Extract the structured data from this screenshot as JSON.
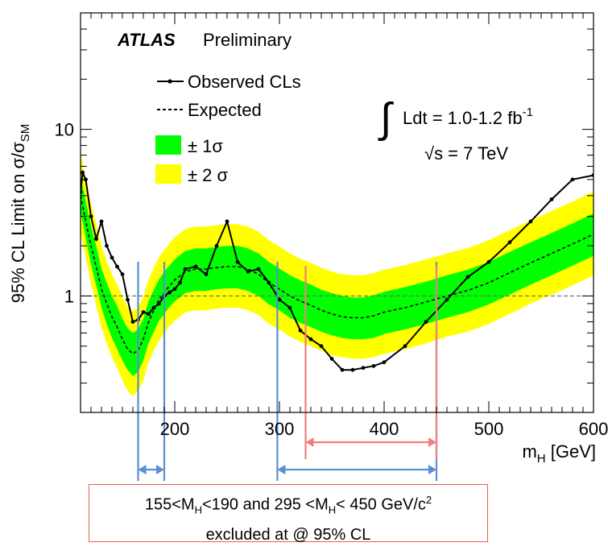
{
  "chart_data": {
    "type": "line",
    "yscale": "log",
    "xlim": [
      110,
      600
    ],
    "ylim": [
      0.2,
      50
    ],
    "grid": false,
    "legend_placement": "top-left",
    "ylabel_parts": {
      "main": "95% CL Limit on  σ/σ",
      "sub": "SM"
    },
    "xlabel_parts": {
      "main": "m",
      "sub": "H",
      "rest": " [GeV]"
    },
    "x_ticks": [
      200,
      300,
      400,
      500,
      600
    ],
    "y_tick_labels": [
      {
        "value": 1,
        "label": "1"
      },
      {
        "value": 10,
        "label": "10"
      }
    ],
    "reference_line": {
      "y": 1,
      "style": "dashed",
      "color": "#666666"
    },
    "annotations": {
      "atlas": "ATLAS",
      "preliminary": "Preliminary",
      "lumi": {
        "integral": "∫",
        "text": "Ldt = 1.0-1.2 fb",
        "sup": "-1"
      },
      "energy": "√s = 7 TeV"
    },
    "legend": [
      {
        "key": "observed",
        "label": "Observed CLs"
      },
      {
        "key": "expected",
        "label": "Expected"
      },
      {
        "key": "one_sigma",
        "label": "± 1σ",
        "color": "#00ff00"
      },
      {
        "key": "two_sigma",
        "label": "± 2 σ",
        "color": "#ffff00"
      }
    ],
    "colors": {
      "one_sigma": "#00ff00",
      "two_sigma": "#ffff00",
      "observed": "#000000",
      "excluded_blue": "#5b8fd0",
      "excluded_red": "#f08080"
    },
    "x": [
      110,
      112,
      115,
      120,
      125,
      130,
      135,
      140,
      145,
      150,
      155,
      160,
      165,
      170,
      175,
      180,
      185,
      190,
      195,
      200,
      205,
      210,
      220,
      230,
      240,
      250,
      260,
      270,
      280,
      290,
      300,
      310,
      320,
      330,
      340,
      350,
      360,
      370,
      380,
      390,
      400,
      420,
      440,
      460,
      480,
      500,
      520,
      540,
      560,
      580,
      600
    ],
    "observed": [
      4.2,
      5.5,
      5.0,
      3.0,
      2.2,
      2.8,
      2.0,
      1.7,
      1.5,
      1.35,
      0.95,
      0.7,
      0.72,
      0.8,
      0.78,
      0.85,
      0.9,
      1.0,
      1.05,
      1.1,
      1.2,
      1.45,
      1.5,
      1.35,
      2.0,
      2.8,
      1.6,
      1.4,
      1.45,
      1.2,
      0.95,
      0.85,
      0.62,
      0.55,
      0.5,
      0.42,
      0.36,
      0.36,
      0.37,
      0.38,
      0.4,
      0.5,
      0.7,
      0.95,
      1.3,
      1.6,
      2.1,
      2.8,
      3.8,
      5.0,
      5.3
    ],
    "expected": [
      4.0,
      3.5,
      2.8,
      2.0,
      1.5,
      1.1,
      0.9,
      0.75,
      0.65,
      0.55,
      0.48,
      0.45,
      0.47,
      0.55,
      0.7,
      0.82,
      0.95,
      1.05,
      1.15,
      1.25,
      1.32,
      1.4,
      1.45,
      1.45,
      1.48,
      1.5,
      1.5,
      1.45,
      1.35,
      1.2,
      1.1,
      1.0,
      0.93,
      0.88,
      0.82,
      0.78,
      0.75,
      0.74,
      0.74,
      0.76,
      0.8,
      0.85,
      0.92,
      1.0,
      1.08,
      1.2,
      1.38,
      1.58,
      1.8,
      2.05,
      2.35
    ],
    "one_sigma_lo": [
      3.2,
      2.8,
      2.2,
      1.55,
      1.15,
      0.85,
      0.68,
      0.56,
      0.48,
      0.41,
      0.36,
      0.33,
      0.35,
      0.41,
      0.52,
      0.61,
      0.71,
      0.78,
      0.86,
      0.93,
      0.98,
      1.04,
      1.07,
      1.07,
      1.1,
      1.11,
      1.11,
      1.07,
      1.0,
      0.89,
      0.82,
      0.74,
      0.69,
      0.65,
      0.61,
      0.58,
      0.56,
      0.55,
      0.55,
      0.56,
      0.59,
      0.63,
      0.68,
      0.74,
      0.8,
      0.89,
      1.02,
      1.17,
      1.33,
      1.52,
      1.74
    ],
    "one_sigma_hi": [
      5.3,
      4.6,
      3.7,
      2.65,
      2.0,
      1.46,
      1.2,
      1.0,
      0.87,
      0.73,
      0.64,
      0.6,
      0.63,
      0.73,
      0.93,
      1.09,
      1.26,
      1.4,
      1.53,
      1.66,
      1.76,
      1.86,
      1.93,
      1.93,
      1.97,
      2.0,
      2.0,
      1.93,
      1.8,
      1.6,
      1.46,
      1.33,
      1.24,
      1.17,
      1.09,
      1.04,
      1.0,
      0.98,
      0.98,
      1.01,
      1.06,
      1.13,
      1.22,
      1.33,
      1.44,
      1.6,
      1.84,
      2.1,
      2.39,
      2.73,
      3.13
    ],
    "two_sigma_lo": [
      2.4,
      2.1,
      1.7,
      1.2,
      0.88,
      0.65,
      0.52,
      0.43,
      0.37,
      0.31,
      0.27,
      0.25,
      0.27,
      0.31,
      0.4,
      0.47,
      0.54,
      0.6,
      0.66,
      0.71,
      0.75,
      0.8,
      0.82,
      0.82,
      0.84,
      0.85,
      0.85,
      0.82,
      0.77,
      0.68,
      0.63,
      0.57,
      0.53,
      0.5,
      0.47,
      0.44,
      0.43,
      0.42,
      0.42,
      0.43,
      0.45,
      0.48,
      0.52,
      0.57,
      0.61,
      0.68,
      0.78,
      0.9,
      1.02,
      1.16,
      1.33
    ],
    "two_sigma_hi": [
      7.2,
      6.3,
      5.0,
      3.6,
      2.7,
      2.0,
      1.62,
      1.35,
      1.17,
      0.99,
      0.86,
      0.81,
      0.85,
      0.99,
      1.26,
      1.48,
      1.71,
      1.89,
      2.07,
      2.25,
      2.38,
      2.52,
      2.61,
      2.61,
      2.66,
      2.7,
      2.7,
      2.61,
      2.43,
      2.16,
      1.98,
      1.8,
      1.67,
      1.58,
      1.48,
      1.4,
      1.35,
      1.33,
      1.33,
      1.37,
      1.44,
      1.53,
      1.66,
      1.8,
      1.94,
      2.16,
      2.48,
      2.84,
      3.24,
      3.69,
      4.23
    ],
    "exclusion_markers": {
      "blue_lines_x": [
        165,
        190,
        298,
        450
      ],
      "red_lines_x": [
        325,
        450
      ],
      "blue_arrows": [
        [
          165,
          190
        ],
        [
          298,
          450
        ]
      ],
      "red_arrows": [
        [
          325,
          450
        ]
      ]
    }
  },
  "caption": {
    "line1": {
      "a": "155<M",
      "a_sub": "H",
      "b": "<190   and   295 <M",
      "b_sub": "H",
      "c": "< 450 GeV/c",
      "c_sup": "2"
    },
    "line2": "excluded at @ 95% CL"
  }
}
